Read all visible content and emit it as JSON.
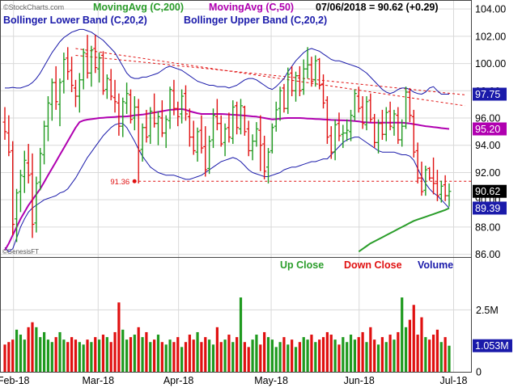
{
  "legend": {
    "row1": [
      {
        "text": "MovingAvg (C,200)",
        "color": "#2a9d2a"
      },
      {
        "text": "MovingAvg (C,50)",
        "color": "#b000b0"
      },
      {
        "text": "07/06/2018 = 90.62 (+0.29)",
        "color": "#000000"
      }
    ],
    "row2": [
      {
        "text": "Bollinger Lower Band (C,20,2)",
        "color": "#1a1aaa"
      },
      {
        "text": "Bollinger Upper Band (C,20,2)",
        "color": "#1a1aaa"
      }
    ]
  },
  "source": "©StockCharts.com",
  "watermark": "©GenesisFT",
  "volume_legend": [
    {
      "text": "Up Close",
      "color": "#2a9d2a"
    },
    {
      "text": "Down Close",
      "color": "#e01010"
    },
    {
      "text": "Volume",
      "color": "#1a1aaa"
    }
  ],
  "chart_data": {
    "type": "bar",
    "subtype": "ohlc-price-chart-with-volume",
    "price_axis": {
      "ticks": [
        "86.00",
        "88.00",
        "90.00",
        "92.00",
        "94.00",
        "96.00",
        "98.00",
        "100.00",
        "102.00",
        "104.00"
      ],
      "range": [
        85.8,
        104.6
      ],
      "side": "right"
    },
    "volume_axis": {
      "ticks": [
        "0",
        "2.5M"
      ],
      "range": [
        0,
        4600000
      ]
    },
    "x_labels": [
      "Feb-18",
      "Mar-18",
      "Apr-18",
      "May-18",
      "Jun-18",
      "Jul-18"
    ],
    "grid": true,
    "price_labels": [
      {
        "label": "97.75",
        "value": 97.75,
        "bg": "#1a1aaa",
        "fg": "#ffffff"
      },
      {
        "label": "95.20",
        "value": 95.2,
        "bg": "#b000b0",
        "fg": "#ffffff"
      },
      {
        "label": "90.62",
        "value": 90.62,
        "bg": "#000000",
        "fg": "#ffffff"
      },
      {
        "label": "89.39",
        "value": 89.39,
        "bg": "#1a1aaa",
        "fg": "#ffffff"
      }
    ],
    "volume_label": {
      "label": "1.053M",
      "value": 1053000,
      "bg": "#1a1aaa",
      "fg": "#ffffff"
    },
    "support": {
      "value": 91.36,
      "label": "91.36",
      "start": 34,
      "color": "#e01010"
    },
    "trendlines": [
      {
        "i1": 18,
        "p1": 101.1,
        "i2": 117,
        "p2": 96.9,
        "color": "#e01010"
      },
      {
        "i1": 18,
        "p1": 100.6,
        "i2": 117,
        "p2": 97.7,
        "color": "#e01010"
      }
    ],
    "bars": [
      [
        95.7,
        96.8,
        94.4,
        95.0,
        1100000
      ],
      [
        94.9,
        96.2,
        93.2,
        93.5,
        1200000
      ],
      [
        93.6,
        94.3,
        87.4,
        88.2,
        1300000
      ],
      [
        88.6,
        90.8,
        86.9,
        90.5,
        1700000
      ],
      [
        90.6,
        92.2,
        89.1,
        91.8,
        1500000
      ],
      [
        91.7,
        93.6,
        90.5,
        92.9,
        1300000
      ],
      [
        92.7,
        94.1,
        91.2,
        91.8,
        1800000
      ],
      [
        91.9,
        93.4,
        87.2,
        88.2,
        2000000
      ],
      [
        88.3,
        91.7,
        87.6,
        91.2,
        1800000
      ],
      [
        91.3,
        93.8,
        90.7,
        93.4,
        1400000
      ],
      [
        93.3,
        95.8,
        92.6,
        95.4,
        1600000
      ],
      [
        95.4,
        97.6,
        94.3,
        97.1,
        1300000
      ],
      [
        97.0,
        98.9,
        95.8,
        98.6,
        1200000
      ],
      [
        98.6,
        99.8,
        96.6,
        97.2,
        1400000
      ],
      [
        97.0,
        98.9,
        95.4,
        98.6,
        1600000
      ],
      [
        98.7,
        100.8,
        97.8,
        100.3,
        1300000
      ],
      [
        100.4,
        101.2,
        98.8,
        99.4,
        1200000
      ],
      [
        99.5,
        100.5,
        97.9,
        98.4,
        1400000
      ],
      [
        98.2,
        98.8,
        96.8,
        97.6,
        1300000
      ],
      [
        97.6,
        99.3,
        96.4,
        98.8,
        1200000
      ],
      [
        98.8,
        101.1,
        98.1,
        100.8,
        1100000
      ],
      [
        100.7,
        102.1,
        98.9,
        99.3,
        1300000
      ],
      [
        99.3,
        101.3,
        98.3,
        101.0,
        1200000
      ],
      [
        101.1,
        102.1,
        99.3,
        99.7,
        1400000
      ],
      [
        99.6,
        100.8,
        98.6,
        100.4,
        1300000
      ],
      [
        100.6,
        100.9,
        97.7,
        98.0,
        1500000
      ],
      [
        98.1,
        99.2,
        97.4,
        98.9,
        1400000
      ],
      [
        98.8,
        99.6,
        97.3,
        97.6,
        1200000
      ],
      [
        97.5,
        98.8,
        96.4,
        97.2,
        1600000
      ],
      [
        97.1,
        97.8,
        94.7,
        95.4,
        2800000
      ],
      [
        95.4,
        97.5,
        94.6,
        97.2,
        1700000
      ],
      [
        97.1,
        98.6,
        96.3,
        97.8,
        1300000
      ],
      [
        97.7,
        98.1,
        95.6,
        95.9,
        1400000
      ],
      [
        96.0,
        97.6,
        95.1,
        96.8,
        1500000
      ],
      [
        96.8,
        97.4,
        91.2,
        93.6,
        1800000
      ],
      [
        93.7,
        95.6,
        92.8,
        95.3,
        1400000
      ],
      [
        95.3,
        96.6,
        94.2,
        94.6,
        1600000
      ],
      [
        94.7,
        96.8,
        94.1,
        96.5,
        1200000
      ],
      [
        96.4,
        97.8,
        95.3,
        95.6,
        1300000
      ],
      [
        95.6,
        96.5,
        94.0,
        96.1,
        1500000
      ],
      [
        96.0,
        97.3,
        94.6,
        94.9,
        1200000
      ],
      [
        94.9,
        96.2,
        93.8,
        95.9,
        1100000
      ],
      [
        95.8,
        98.3,
        95.2,
        98.1,
        1300000
      ],
      [
        98.0,
        98.8,
        96.2,
        96.7,
        1200000
      ],
      [
        96.7,
        97.2,
        95.4,
        96.1,
        1400000
      ],
      [
        96.3,
        98.1,
        95.6,
        97.6,
        1000000
      ],
      [
        97.8,
        98.4,
        95.8,
        96.3,
        1200000
      ],
      [
        96.1,
        96.7,
        93.9,
        94.6,
        1500000
      ],
      [
        94.6,
        95.8,
        93.3,
        93.6,
        1300000
      ],
      [
        93.5,
        95.3,
        92.8,
        95.0,
        1600000
      ],
      [
        95.1,
        96.2,
        93.4,
        93.8,
        1200000
      ],
      [
        93.9,
        95.4,
        91.7,
        92.2,
        1400000
      ],
      [
        92.3,
        94.7,
        91.9,
        94.3,
        1300000
      ],
      [
        94.4,
        96.7,
        93.8,
        96.2,
        1100000
      ],
      [
        96.1,
        97.4,
        95.1,
        95.6,
        1800000
      ],
      [
        95.6,
        96.2,
        93.9,
        94.1,
        1200000
      ],
      [
        94.2,
        95.6,
        93.2,
        95.2,
        1300000
      ],
      [
        95.3,
        96.4,
        94.2,
        94.6,
        1500000
      ],
      [
        94.5,
        97.3,
        94.1,
        96.8,
        1200000
      ],
      [
        96.9,
        97.2,
        94.8,
        95.3,
        1400000
      ],
      [
        95.2,
        97.4,
        94.8,
        96.9,
        3000000
      ],
      [
        96.8,
        96.9,
        94.7,
        95.0,
        1200000
      ],
      [
        95.2,
        95.8,
        93.2,
        93.6,
        1000000
      ],
      [
        93.6,
        94.8,
        92.9,
        94.3,
        1300000
      ],
      [
        94.3,
        95.7,
        93.9,
        95.2,
        1500000
      ],
      [
        95.1,
        96.2,
        92.1,
        94.0,
        1100000
      ],
      [
        94.1,
        94.7,
        91.5,
        92.1,
        1600000
      ],
      [
        92.4,
        93.8,
        91.2,
        93.5,
        1400000
      ],
      [
        93.6,
        95.6,
        93.4,
        95.3,
        1300000
      ],
      [
        95.4,
        97.2,
        95.0,
        96.6,
        1000000
      ],
      [
        96.7,
        98.3,
        95.8,
        98.0,
        1200000
      ],
      [
        98.2,
        98.5,
        96.4,
        96.7,
        1400000
      ],
      [
        96.7,
        99.7,
        96.3,
        99.2,
        1100000
      ],
      [
        99.3,
        99.8,
        97.6,
        98.0,
        1300000
      ],
      [
        98.0,
        99.4,
        97.2,
        99.1,
        1000000
      ],
      [
        99.1,
        99.8,
        97.6,
        98.0,
        1200000
      ],
      [
        98.1,
        100.3,
        97.7,
        99.6,
        1400000
      ],
      [
        99.6,
        101.2,
        98.9,
        99.9,
        1300000
      ],
      [
        99.9,
        100.5,
        98.3,
        98.7,
        1500000
      ],
      [
        98.8,
        100.6,
        98.3,
        100.2,
        1200000
      ],
      [
        100.3,
        100.4,
        98.1,
        98.4,
        1300000
      ],
      [
        98.5,
        99.2,
        96.7,
        97.1,
        1400000
      ],
      [
        97.3,
        97.6,
        94.1,
        94.6,
        1600000
      ],
      [
        94.7,
        95.4,
        93.0,
        93.5,
        1500000
      ],
      [
        93.5,
        95.9,
        92.9,
        95.5,
        1300000
      ],
      [
        95.6,
        96.4,
        94.3,
        94.7,
        1100000
      ],
      [
        94.8,
        95.5,
        93.8,
        94.9,
        1400000
      ],
      [
        94.9,
        95.9,
        94.3,
        95.1,
        1200000
      ],
      [
        95.0,
        96.6,
        94.3,
        96.2,
        1500000
      ],
      [
        96.1,
        98.1,
        95.8,
        97.8,
        1300000
      ],
      [
        97.6,
        98.3,
        96.4,
        96.7,
        1400000
      ],
      [
        96.8,
        97.6,
        95.2,
        95.6,
        1600000
      ],
      [
        95.5,
        97.6,
        95.1,
        97.2,
        1200000
      ],
      [
        97.3,
        97.8,
        95.7,
        95.9,
        1800000
      ],
      [
        96.0,
        96.3,
        93.8,
        94.2,
        1300000
      ],
      [
        94.2,
        95.9,
        93.4,
        95.6,
        1100000
      ],
      [
        95.6,
        96.6,
        94.4,
        94.8,
        1400000
      ],
      [
        94.8,
        96.8,
        94.3,
        96.4,
        1200000
      ],
      [
        96.5,
        97.2,
        95.1,
        95.4,
        1500000
      ],
      [
        95.3,
        96.6,
        94.7,
        96.3,
        1300000
      ],
      [
        96.2,
        96.8,
        94.1,
        94.4,
        1600000
      ],
      [
        94.4,
        95.9,
        93.9,
        95.4,
        3000000
      ],
      [
        95.4,
        98.3,
        95.2,
        97.9,
        1800000
      ],
      [
        97.9,
        98.2,
        95.7,
        96.2,
        2100000
      ],
      [
        96.1,
        96.6,
        93.1,
        93.5,
        2700000
      ],
      [
        93.6,
        94.2,
        91.2,
        91.6,
        1500000
      ],
      [
        91.6,
        92.8,
        90.3,
        90.6,
        2200000
      ],
      [
        90.7,
        92.5,
        90.3,
        92.2,
        1400000
      ],
      [
        92.3,
        92.4,
        91.4,
        91.6,
        1300000
      ],
      [
        91.6,
        93.1,
        90.4,
        91.2,
        1500000
      ],
      [
        91.2,
        92.2,
        89.9,
        90.3,
        1700000
      ],
      [
        90.4,
        91.4,
        89.8,
        91.0,
        1200000
      ],
      [
        91.1,
        91.8,
        89.9,
        90.3,
        1400000
      ],
      [
        90.3,
        91.2,
        89.5,
        90.62,
        1053000
      ]
    ],
    "indicators": {
      "ma200": [
        null,
        null,
        null,
        null,
        null,
        null,
        null,
        null,
        null,
        null,
        null,
        null,
        null,
        null,
        null,
        null,
        null,
        null,
        null,
        null,
        null,
        null,
        null,
        null,
        null,
        null,
        null,
        null,
        null,
        null,
        null,
        null,
        null,
        null,
        null,
        null,
        null,
        null,
        null,
        null,
        null,
        null,
        null,
        null,
        null,
        null,
        null,
        null,
        null,
        null,
        null,
        null,
        null,
        null,
        null,
        null,
        null,
        null,
        null,
        null,
        null,
        null,
        null,
        null,
        null,
        null,
        null,
        null,
        null,
        null,
        null,
        null,
        null,
        null,
        null,
        null,
        null,
        null,
        null,
        null,
        null,
        null,
        null,
        null,
        null,
        null,
        null,
        null,
        null,
        null,
        86.2,
        86.4,
        86.6,
        86.8,
        86.95,
        87.1,
        87.25,
        87.4,
        87.55,
        87.7,
        87.85,
        88.0,
        88.15,
        88.3,
        88.45,
        88.55,
        88.65,
        88.75,
        88.85,
        88.95,
        89.05,
        89.15,
        89.25,
        89.39
      ],
      "ma50": [
        86.3,
        86.8,
        87.4,
        88.0,
        88.6,
        89.1,
        89.6,
        90.0,
        90.4,
        90.8,
        91.3,
        91.8,
        92.3,
        92.8,
        93.3,
        93.8,
        94.3,
        94.8,
        95.3,
        95.7,
        95.82,
        95.88,
        95.92,
        95.96,
        96.0,
        96.02,
        96.04,
        96.06,
        96.08,
        96.1,
        96.1,
        96.12,
        96.15,
        96.2,
        96.22,
        96.25,
        96.3,
        96.35,
        96.4,
        96.45,
        96.5,
        96.55,
        96.6,
        96.62,
        96.64,
        96.66,
        96.6,
        96.5,
        96.42,
        96.35,
        96.3,
        96.3,
        96.3,
        96.3,
        96.3,
        96.3,
        96.28,
        96.26,
        96.24,
        96.22,
        96.2,
        96.18,
        96.15,
        96.12,
        96.1,
        96.05,
        96.0,
        95.95,
        95.9,
        95.92,
        95.95,
        95.98,
        96.0,
        96.0,
        96.0,
        96.0,
        95.98,
        95.96,
        95.95,
        95.93,
        95.92,
        95.9,
        95.88,
        95.86,
        95.85,
        95.84,
        95.83,
        95.82,
        95.8,
        95.78,
        95.75,
        95.7,
        95.68,
        95.66,
        95.66,
        95.66,
        95.66,
        95.66,
        95.66,
        95.66,
        95.66,
        95.66,
        95.63,
        95.6,
        95.55,
        95.5,
        95.45,
        95.4,
        95.37,
        95.33,
        95.3,
        95.26,
        95.23,
        95.2
      ],
      "bb_upper": [
        98.2,
        98.2,
        98.25,
        98.2,
        98.2,
        98.3,
        98.4,
        98.6,
        98.9,
        99.3,
        99.8,
        100.3,
        100.8,
        101.2,
        101.6,
        101.9,
        102.1,
        102.3,
        102.4,
        102.5,
        102.5,
        102.4,
        102.3,
        102.1,
        101.9,
        101.7,
        101.4,
        101.1,
        100.8,
        100.3,
        99.8,
        99.3,
        99.0,
        98.9,
        98.9,
        99.0,
        99.0,
        99.1,
        99.2,
        99.3,
        99.5,
        99.7,
        99.8,
        99.7,
        99.6,
        99.5,
        99.3,
        99.1,
        98.9,
        98.7,
        98.6,
        98.5,
        98.4,
        98.4,
        98.3,
        98.3,
        98.3,
        98.2,
        98.3,
        98.4,
        98.6,
        98.8,
        98.9,
        98.9,
        98.8,
        98.6,
        98.4,
        98.2,
        98.1,
        98.3,
        98.6,
        98.9,
        99.4,
        99.8,
        100.2,
        100.5,
        100.8,
        101.0,
        101.1,
        101.0,
        100.9,
        100.7,
        100.5,
        100.3,
        100.2,
        100.2,
        100.1,
        100.0,
        99.9,
        99.8,
        99.7,
        99.5,
        99.3,
        99.0,
        98.7,
        98.4,
        98.1,
        97.9,
        97.8,
        97.9,
        98.1,
        98.2,
        98.2,
        98.1,
        97.9,
        97.8,
        97.75,
        97.9,
        98.2,
        98.3,
        98.0,
        97.75,
        97.75,
        97.75
      ],
      "bb_lower": [
        86.5,
        86.2,
        86.4,
        87.2,
        88.0,
        88.6,
        89.1,
        89.4,
        89.6,
        89.8,
        90.0,
        90.1,
        90.2,
        90.3,
        90.5,
        90.6,
        90.8,
        91.2,
        91.6,
        92.1,
        92.6,
        93.1,
        93.5,
        93.9,
        94.3,
        94.7,
        95.0,
        95.3,
        95.5,
        95.6,
        95.6,
        95.3,
        94.8,
        94.3,
        93.7,
        93.2,
        92.8,
        92.4,
        92.2,
        92.0,
        91.9,
        91.8,
        91.8,
        91.8,
        91.7,
        91.6,
        91.5,
        91.5,
        91.6,
        91.7,
        91.8,
        92.0,
        92.2,
        92.4,
        92.6,
        92.8,
        92.9,
        93.0,
        93.1,
        93.0,
        92.8,
        92.5,
        92.2,
        92.0,
        91.9,
        91.8,
        91.7,
        91.7,
        91.8,
        91.9,
        92.0,
        92.2,
        92.3,
        92.4,
        92.4,
        92.5,
        92.6,
        92.7,
        92.8,
        92.8,
        92.9,
        93.0,
        93.0,
        93.3,
        93.6,
        93.9,
        94.2,
        94.4,
        94.5,
        94.6,
        94.6,
        94.4,
        94.2,
        94.0,
        93.8,
        93.6,
        93.5,
        93.5,
        93.5,
        93.5,
        93.4,
        93.3,
        93.3,
        93.2,
        92.9,
        92.3,
        91.7,
        91.2,
        90.8,
        90.5,
        90.3,
        90.0,
        89.7,
        89.39
      ]
    }
  }
}
